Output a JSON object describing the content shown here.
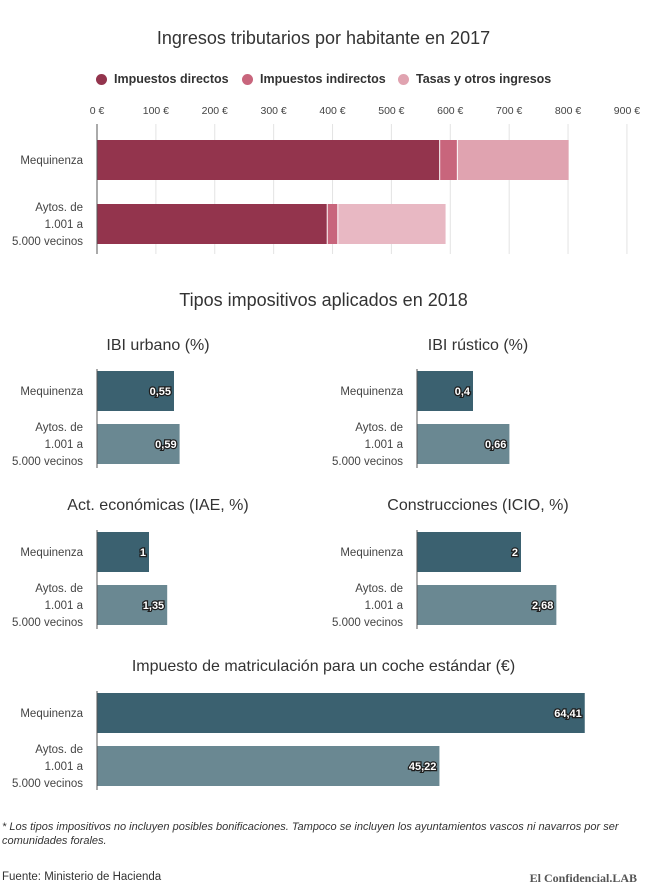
{
  "chart_data": [
    {
      "type": "bar",
      "orientation": "horizontal",
      "stacked": true,
      "title": "Ingresos tributarios por habitante en 2017",
      "categories": [
        "Mequinenza",
        "Aytos. de 1.001 a 5.000 vecinos"
      ],
      "series": [
        {
          "name": "Impuestos directos",
          "color": "#93344d",
          "values": [
            582,
            391
          ]
        },
        {
          "name": "Impuestos indirectos",
          "color": "#c8657c",
          "values": [
            30,
            18
          ]
        },
        {
          "name": "Tasas y otros ingresos",
          "color": "#e0a3b0",
          "values": [
            189,
            183
          ]
        }
      ],
      "series_colors_row2": [
        "#93344d",
        "#c8657c",
        "#e8b8c3"
      ],
      "xlim": [
        0,
        900
      ],
      "xticks": [
        "0 €",
        "100 €",
        "200 €",
        "300 €",
        "400 €",
        "500 €",
        "600 €",
        "700 €",
        "800 €",
        "900 €"
      ],
      "grid": true,
      "legend": "top"
    },
    {
      "type": "bar",
      "orientation": "horizontal",
      "title": "IBI urbano (%)",
      "categories": [
        "Mequinenza",
        "Aytos. de 1.001 a 5.000 vecinos"
      ],
      "values": [
        0.55,
        0.59
      ],
      "labels": [
        "0,55",
        "0,59"
      ],
      "colors": [
        "#3b6170",
        "#6a8892"
      ],
      "xlim": [
        0,
        1
      ]
    },
    {
      "type": "bar",
      "orientation": "horizontal",
      "title": "IBI rústico (%)",
      "categories": [
        "Mequinenza",
        "Aytos. de 1.001 a 5.000 vecinos"
      ],
      "values": [
        0.4,
        0.66
      ],
      "labels": [
        "0,4",
        "0,66"
      ],
      "colors": [
        "#3b6170",
        "#6a8892"
      ],
      "xlim": [
        0,
        1
      ]
    },
    {
      "type": "bar",
      "orientation": "horizontal",
      "title": "Act. económicas (IAE, %)",
      "categories": [
        "Mequinenza",
        "Aytos. de 1.001 a 5.000 vecinos"
      ],
      "values": [
        1,
        1.35
      ],
      "labels": [
        "1",
        "1,35"
      ],
      "colors": [
        "#3b6170",
        "#6a8892"
      ],
      "xlim": [
        0,
        4
      ]
    },
    {
      "type": "bar",
      "orientation": "horizontal",
      "title": "Construcciones (ICIO, %)",
      "categories": [
        "Mequinenza",
        "Aytos. de 1.001 a 5.000 vecinos"
      ],
      "values": [
        2,
        2.68
      ],
      "labels": [
        "2",
        "2,68"
      ],
      "colors": [
        "#3b6170",
        "#6a8892"
      ],
      "xlim": [
        0,
        4
      ]
    },
    {
      "type": "bar",
      "orientation": "horizontal",
      "title": "Impuesto de matriculación para un coche estándar (€)",
      "categories": [
        "Mequinenza",
        "Aytos. de 1.001 a 5.000 vecinos"
      ],
      "values": [
        64.41,
        45.22
      ],
      "labels": [
        "64,41",
        "45,22"
      ],
      "colors": [
        "#3b6170",
        "#6a8892"
      ],
      "xlim": [
        0,
        65.5
      ]
    }
  ],
  "section_title": "Tipos impositivos aplicados en 2018",
  "category_lines": {
    "mequinenza": [
      "Mequinenza"
    ],
    "aytos": [
      "Aytos. de",
      "1.001 a",
      "5.000 vecinos"
    ]
  },
  "footnote": "* Los tipos impositivos no incluyen posibles bonificaciones. Tampoco se incluyen los ayuntamientos vascos ni navarros por ser comunidades forales.",
  "source": "Fuente: Ministerio de Hacienda",
  "brand": "El Confidencial.LAB"
}
